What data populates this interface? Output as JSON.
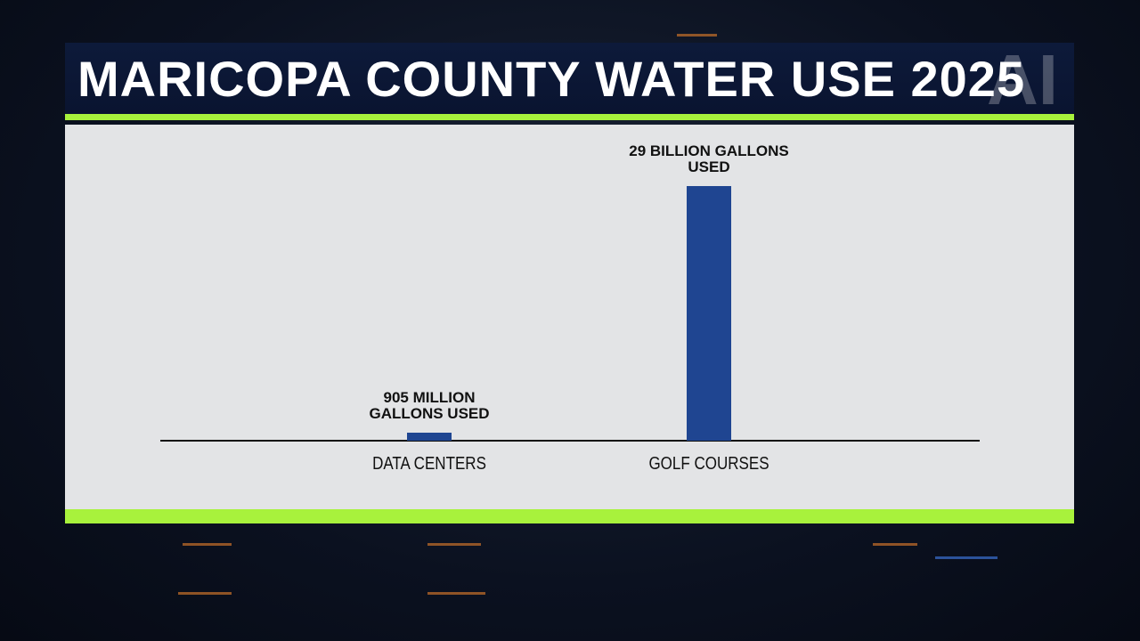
{
  "chart_data": {
    "type": "bar",
    "title": "MARICOPA COUNTY WATER USE 2025",
    "logo": "AI",
    "categories": [
      "DATA CENTERS",
      "GOLF COURSES"
    ],
    "values": [
      905000000,
      29000000000
    ],
    "value_labels": [
      "905 MILLION GALLONS USED",
      "29 BILLION GALLONS USED"
    ],
    "color": "#1f4591"
  }
}
